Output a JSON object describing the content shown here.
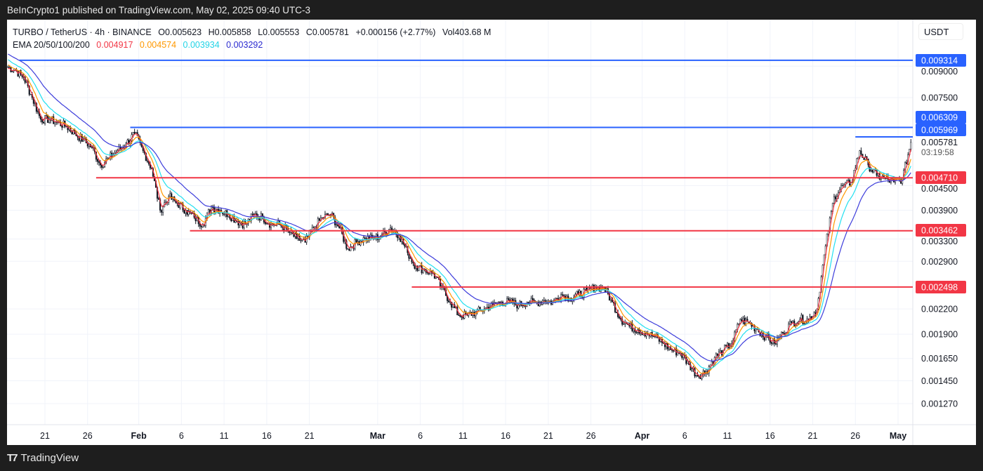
{
  "header": {
    "published": "BeInCrypto1 published on TradingView.com, May 02, 2025 09:40 UTC-3",
    "symbol": "TURBO / TetherUS · 4h · BINANCE",
    "open": "O0.005623",
    "high": "H0.005858",
    "low": "L0.005553",
    "close": "C0.005781",
    "change": "+0.000156 (+2.77%)",
    "volume": "Vol403.68 M",
    "ema_label": "EMA 20/50/100/200",
    "ema_values": [
      "0.004917",
      "0.004574",
      "0.003934",
      "0.003292"
    ],
    "currency": "USDT"
  },
  "footer": {
    "brand": "TradingView"
  },
  "chart_data": {
    "type": "candlestick",
    "interval": "4h",
    "y_scale": "log",
    "ylim": [
      0.00118,
      0.0101
    ],
    "grid": true,
    "start_date": "2025-01-17",
    "end_date": "2025-05-02",
    "daily_closes": [
      0.00879,
      0.00844,
      0.0075,
      0.00661,
      0.00661,
      0.00648,
      0.00635,
      0.00609,
      0.00585,
      0.00562,
      0.00507,
      0.00528,
      0.00551,
      0.00573,
      0.00609,
      0.00551,
      0.00497,
      0.0039,
      0.00422,
      0.00406,
      0.0039,
      0.00374,
      0.00359,
      0.00398,
      0.0039,
      0.00381,
      0.00366,
      0.00359,
      0.00381,
      0.00374,
      0.00359,
      0.00359,
      0.00345,
      0.00331,
      0.00324,
      0.00352,
      0.00374,
      0.00381,
      0.00352,
      0.00311,
      0.00324,
      0.00331,
      0.00331,
      0.00338,
      0.00352,
      0.00338,
      0.00305,
      0.00281,
      0.00276,
      0.0027,
      0.00249,
      0.00229,
      0.00212,
      0.00212,
      0.00216,
      0.0022,
      0.00225,
      0.00229,
      0.00229,
      0.00225,
      0.00229,
      0.00228,
      0.00231,
      0.00229,
      0.00239,
      0.00234,
      0.00239,
      0.00244,
      0.00249,
      0.00249,
      0.00229,
      0.00207,
      0.00199,
      0.00195,
      0.00191,
      0.00187,
      0.0018,
      0.00173,
      0.0017,
      0.00159,
      0.00149,
      0.00153,
      0.00166,
      0.00173,
      0.0018,
      0.00207,
      0.00203,
      0.00195,
      0.00187,
      0.0018,
      0.00191,
      0.00203,
      0.00207,
      0.00207,
      0.0022,
      0.00317,
      0.00422,
      0.00449,
      0.00459,
      0.00551,
      0.00507,
      0.00477,
      0.00468,
      0.00459,
      0.00468,
      0.005781
    ],
    "ema": [
      {
        "name": "EMA 20",
        "color": "#f23645",
        "period": 20
      },
      {
        "name": "EMA 50",
        "color": "#ff9800",
        "period": 50
      },
      {
        "name": "EMA 100",
        "color": "#22e0f0",
        "period": 100
      },
      {
        "name": "EMA 200",
        "color": "#3d3ddb",
        "period": 200
      }
    ],
    "y_ticks": [
      "0.009000",
      "0.007500",
      "0.004500",
      "0.003900",
      "0.003300",
      "0.002900",
      "0.002200",
      "0.001900",
      "0.001650",
      "0.001450",
      "0.001270"
    ],
    "x_ticks": [
      {
        "label": "21",
        "date": "2025-01-21"
      },
      {
        "label": "26",
        "date": "2025-01-26"
      },
      {
        "label": "Feb",
        "date": "2025-02-01",
        "bold": true
      },
      {
        "label": "6",
        "date": "2025-02-06"
      },
      {
        "label": "11",
        "date": "2025-02-11"
      },
      {
        "label": "16",
        "date": "2025-02-16"
      },
      {
        "label": "21",
        "date": "2025-02-21"
      },
      {
        "label": "Mar",
        "date": "2025-03-01",
        "bold": true
      },
      {
        "label": "6",
        "date": "2025-03-06"
      },
      {
        "label": "11",
        "date": "2025-03-11"
      },
      {
        "label": "16",
        "date": "2025-03-16"
      },
      {
        "label": "21",
        "date": "2025-03-21"
      },
      {
        "label": "26",
        "date": "2025-03-26"
      },
      {
        "label": "Apr",
        "date": "2025-04-01",
        "bold": true
      },
      {
        "label": "6",
        "date": "2025-04-06"
      },
      {
        "label": "11",
        "date": "2025-04-11"
      },
      {
        "label": "16",
        "date": "2025-04-16"
      },
      {
        "label": "21",
        "date": "2025-04-21"
      },
      {
        "label": "26",
        "date": "2025-04-26"
      },
      {
        "label": "May",
        "date": "2025-05-01",
        "bold": true
      }
    ],
    "levels": [
      {
        "price": 0.009314,
        "label": "0.009314",
        "type": "resistance",
        "color": "#2962ff",
        "from": "2025-01-18"
      },
      {
        "price": 0.006309,
        "label": "0.006309",
        "type": "resistance",
        "color": "#2962ff",
        "from": "2025-01-31"
      },
      {
        "price": 0.005969,
        "label": "0.005969",
        "type": "resistance",
        "color": "#2962ff",
        "from": "2025-04-26"
      },
      {
        "price": 0.00471,
        "label": "0.004710",
        "type": "support",
        "color": "#f23645",
        "from": "2025-01-27"
      },
      {
        "price": 0.003462,
        "label": "0.003462",
        "type": "support",
        "color": "#f23645",
        "from": "2025-02-07"
      },
      {
        "price": 0.002498,
        "label": "0.002498",
        "type": "support",
        "color": "#f23645",
        "from": "2025-03-05"
      }
    ],
    "last_price": {
      "label": "0.005781",
      "countdown": "03:19:58"
    }
  }
}
